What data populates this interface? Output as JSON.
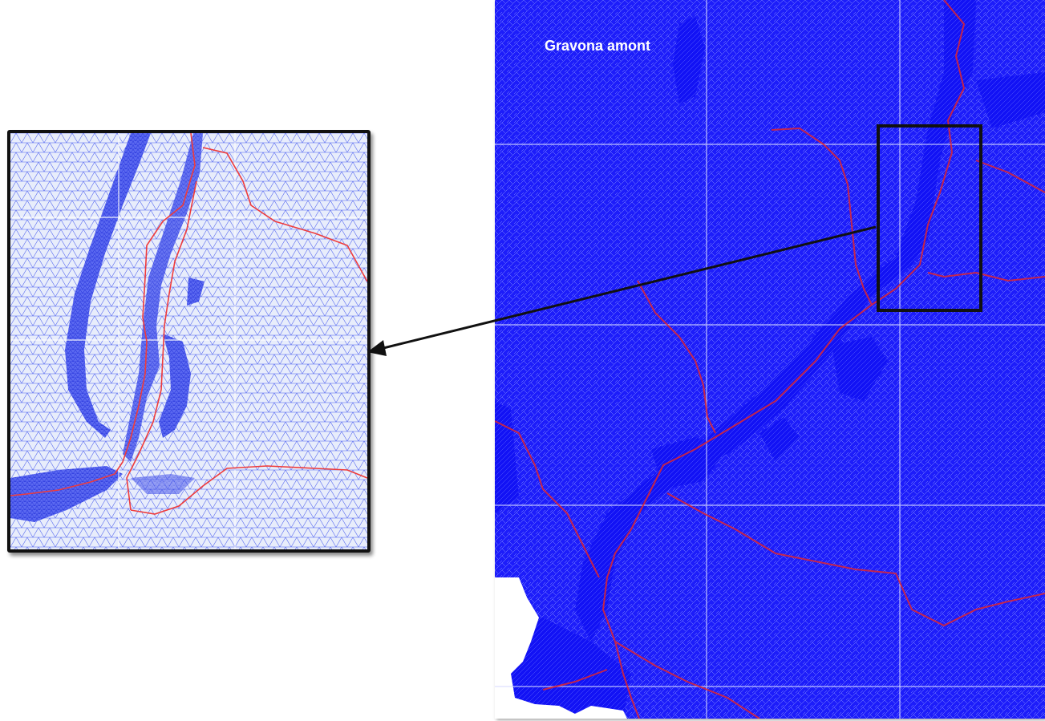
{
  "figure": {
    "map_title": "Gravona amont"
  },
  "colors": {
    "mesh_dense": "#1d1dfa",
    "mesh_light": "#dfe6f7",
    "mesh_line": "#2b3fe8",
    "river": "#e0252f",
    "frame": "#111111",
    "grid": "#d6d9ff"
  },
  "icons": {
    "callout_arrow": "arrow-left-icon"
  }
}
